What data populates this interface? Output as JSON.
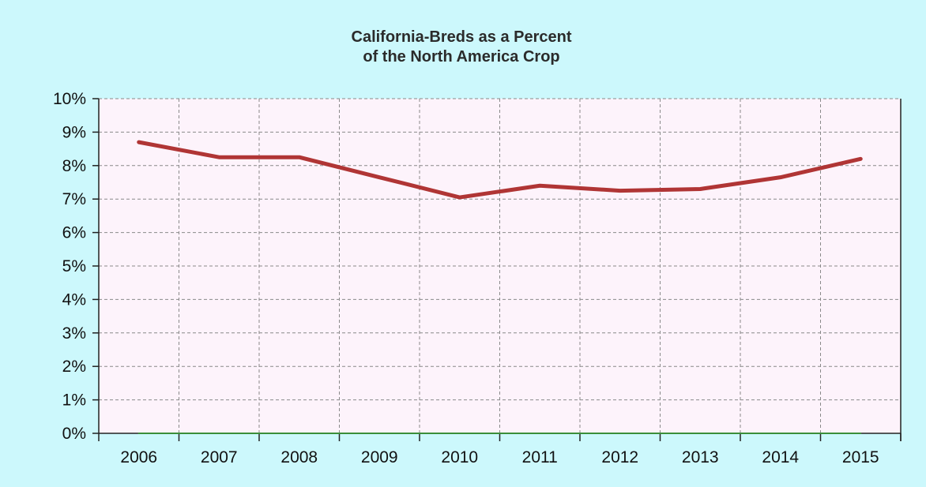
{
  "colors": {
    "background": "#ccf8fc",
    "plot_background": "#fdf3fb",
    "series_line": "#b03535",
    "baseline_line": "#3a8f3a",
    "grid": "#8a8a8a",
    "axis": "#222222"
  },
  "chart_data": {
    "type": "line",
    "title_lines": [
      "California-Breds as a Percent",
      "of the North America Crop"
    ],
    "xlabel": "",
    "ylabel": "",
    "categories": [
      "2006",
      "2007",
      "2008",
      "2009",
      "2010",
      "2011",
      "2012",
      "2013",
      "2014",
      "2015"
    ],
    "y_ticks": [
      "0%",
      "1%",
      "2%",
      "3%",
      "4%",
      "5%",
      "6%",
      "7%",
      "8%",
      "9%",
      "10%"
    ],
    "ylim": [
      0,
      10
    ],
    "grid": true,
    "legend": "none",
    "series": [
      {
        "key": "california_breds",
        "color_key": "series_line",
        "values": [
          8.7,
          8.25,
          8.25,
          7.65,
          7.05,
          7.4,
          7.25,
          7.3,
          7.65,
          8.2
        ]
      },
      {
        "key": "baseline",
        "color_key": "baseline_line",
        "values": [
          0,
          0,
          0,
          0,
          0,
          0,
          0,
          0,
          0,
          0
        ]
      }
    ]
  }
}
